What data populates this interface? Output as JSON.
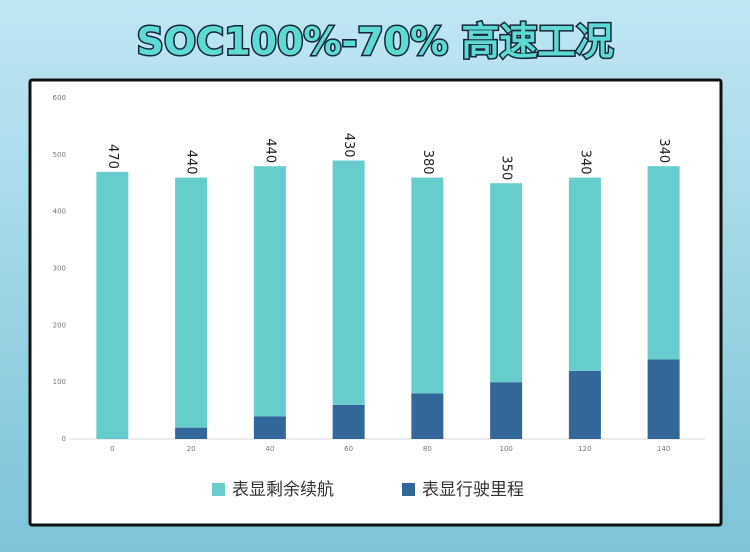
{
  "chart_data": {
    "type": "stacked_bar",
    "title": "SOC100%-70% 高速工况",
    "categories": [
      "0",
      "20",
      "40",
      "60",
      "80",
      "100",
      "120",
      "140"
    ],
    "series": [
      {
        "name": "表显行驶里程",
        "color": "#336699",
        "values": [
          0,
          20,
          40,
          60,
          80,
          100,
          120,
          140
        ]
      },
      {
        "name": "表显剩余续航",
        "color": "#66cccc",
        "values": [
          470,
          440,
          440,
          430,
          380,
          350,
          340,
          340
        ]
      }
    ],
    "legend_order": [
      1,
      0
    ],
    "label_series": 1,
    "ylim": [
      0,
      600
    ],
    "yticks": [
      0,
      100,
      200,
      300,
      400,
      500,
      600
    ],
    "grid": false
  }
}
